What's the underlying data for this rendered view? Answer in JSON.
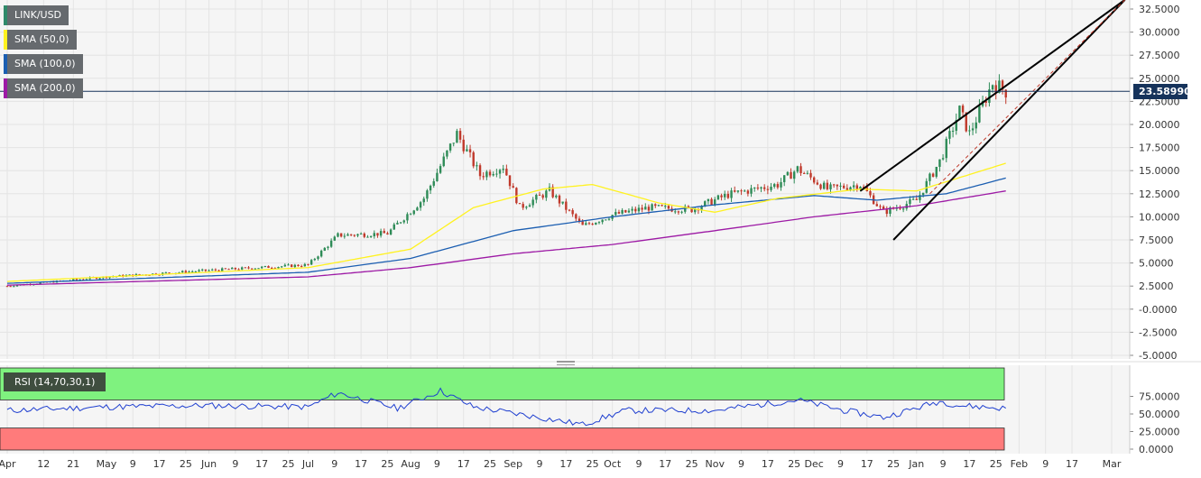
{
  "chart_data": {
    "type": "candlestick",
    "symbol": "LINK/USD",
    "indicators": [
      {
        "label": "SMA (50,0)",
        "color": "#fff21f"
      },
      {
        "label": "SMA (100,0)",
        "color": "#1b5eb1"
      },
      {
        "label": "SMA (200,0)",
        "color": "#9d1aa5"
      }
    ],
    "last_price": "23.58990",
    "y_ticks": [
      "32.5000",
      "30.0000",
      "27.5000",
      "25.0000",
      "22.5000",
      "20.0000",
      "17.5000",
      "15.0000",
      "12.5000",
      "10.0000",
      "7.5000",
      "5.0000",
      "2.5000",
      "-0.0000",
      "-2.5000",
      "-5.0000"
    ],
    "ylim": [
      -5,
      32.5
    ],
    "x_ticks": [
      "Apr",
      "12",
      "21",
      "May",
      "9",
      "17",
      "25",
      "Jun",
      "9",
      "17",
      "25",
      "Jul",
      "9",
      "17",
      "25",
      "Aug",
      "9",
      "17",
      "25",
      "Sep",
      "9",
      "17",
      "25",
      "Oct",
      "9",
      "17",
      "25",
      "Nov",
      "9",
      "17",
      "25",
      "Dec",
      "9",
      "17",
      "25",
      "Jan",
      "9",
      "17",
      "25",
      "Feb",
      "9",
      "17",
      "Mar"
    ],
    "price_anchors": [
      {
        "date": "2020-04-01",
        "close": 2.5
      },
      {
        "date": "2020-05-01",
        "close": 3.5
      },
      {
        "date": "2020-06-01",
        "close": 4.2
      },
      {
        "date": "2020-07-01",
        "close": 4.8
      },
      {
        "date": "2020-07-10",
        "close": 8.0
      },
      {
        "date": "2020-07-25",
        "close": 8.2
      },
      {
        "date": "2020-08-05",
        "close": 12.0
      },
      {
        "date": "2020-08-15",
        "close": 19.0
      },
      {
        "date": "2020-08-22",
        "close": 14.5
      },
      {
        "date": "2020-08-29",
        "close": 15.5
      },
      {
        "date": "2020-09-03",
        "close": 11.0
      },
      {
        "date": "2020-09-12",
        "close": 12.8
      },
      {
        "date": "2020-09-22",
        "close": 9.0
      },
      {
        "date": "2020-10-01",
        "close": 10.2
      },
      {
        "date": "2020-10-12",
        "close": 11.0
      },
      {
        "date": "2020-10-25",
        "close": 10.8
      },
      {
        "date": "2020-11-05",
        "close": 12.4
      },
      {
        "date": "2020-11-20",
        "close": 13.5
      },
      {
        "date": "2020-11-26",
        "close": 15.2
      },
      {
        "date": "2020-12-05",
        "close": 13.0
      },
      {
        "date": "2020-12-15",
        "close": 13.5
      },
      {
        "date": "2020-12-22",
        "close": 10.5
      },
      {
        "date": "2021-01-01",
        "close": 11.8
      },
      {
        "date": "2021-01-08",
        "close": 16.0
      },
      {
        "date": "2021-01-14",
        "close": 21.5
      },
      {
        "date": "2021-01-17",
        "close": 19.0
      },
      {
        "date": "2021-01-24",
        "close": 24.5
      },
      {
        "date": "2021-01-28",
        "close": 23.59
      }
    ],
    "sma50_anchors": [
      {
        "date": "2020-04-01",
        "close": 3.0
      },
      {
        "date": "2020-07-01",
        "close": 4.5
      },
      {
        "date": "2020-08-01",
        "close": 6.5
      },
      {
        "date": "2020-08-20",
        "close": 11.0
      },
      {
        "date": "2020-09-10",
        "close": 13.0
      },
      {
        "date": "2020-09-25",
        "close": 13.5
      },
      {
        "date": "2020-10-15",
        "close": 11.5
      },
      {
        "date": "2020-11-01",
        "close": 10.5
      },
      {
        "date": "2020-11-20",
        "close": 12.0
      },
      {
        "date": "2020-12-15",
        "close": 13.0
      },
      {
        "date": "2021-01-01",
        "close": 12.8
      },
      {
        "date": "2021-01-28",
        "close": 15.8
      }
    ],
    "sma100_anchors": [
      {
        "date": "2020-04-01",
        "close": 2.8
      },
      {
        "date": "2020-07-01",
        "close": 4.0
      },
      {
        "date": "2020-08-01",
        "close": 5.5
      },
      {
        "date": "2020-09-01",
        "close": 8.5
      },
      {
        "date": "2020-10-01",
        "close": 10.0
      },
      {
        "date": "2020-11-01",
        "close": 11.3
      },
      {
        "date": "2020-12-01",
        "close": 12.3
      },
      {
        "date": "2020-12-20",
        "close": 11.8
      },
      {
        "date": "2021-01-10",
        "close": 12.5
      },
      {
        "date": "2021-01-28",
        "close": 14.2
      }
    ],
    "sma200_anchors": [
      {
        "date": "2020-04-01",
        "close": 2.6
      },
      {
        "date": "2020-07-01",
        "close": 3.5
      },
      {
        "date": "2020-08-01",
        "close": 4.5
      },
      {
        "date": "2020-09-01",
        "close": 6.0
      },
      {
        "date": "2020-10-01",
        "close": 7.0
      },
      {
        "date": "2020-11-01",
        "close": 8.5
      },
      {
        "date": "2020-12-01",
        "close": 10.0
      },
      {
        "date": "2021-01-01",
        "close": 11.2
      },
      {
        "date": "2021-01-28",
        "close": 12.8
      }
    ],
    "channel": {
      "upper": [
        {
          "date": "2020-12-15",
          "close": 12.8
        },
        {
          "date": "2021-03-05",
          "close": 33.5
        }
      ],
      "lower": [
        {
          "date": "2020-12-25",
          "close": 7.5
        },
        {
          "date": "2021-03-05",
          "close": 33.5
        }
      ],
      "mid": [
        {
          "date": "2021-01-05",
          "close": 12.5
        },
        {
          "date": "2021-03-05",
          "close": 33.5
        }
      ]
    },
    "rsi": {
      "label": "RSI (14,70,30,1)",
      "overbought": 70,
      "oversold": 30,
      "y_ticks": [
        "75.0000",
        "50.0000",
        "25.0000",
        "0.0000"
      ],
      "ylim": [
        0,
        100
      ],
      "anchors": [
        {
          "date": "2020-04-01",
          "close": 55
        },
        {
          "date": "2020-05-01",
          "close": 60
        },
        {
          "date": "2020-06-01",
          "close": 62
        },
        {
          "date": "2020-07-01",
          "close": 60
        },
        {
          "date": "2020-07-10",
          "close": 80
        },
        {
          "date": "2020-07-28",
          "close": 58
        },
        {
          "date": "2020-08-10",
          "close": 83
        },
        {
          "date": "2020-08-20",
          "close": 60
        },
        {
          "date": "2020-09-05",
          "close": 48
        },
        {
          "date": "2020-09-22",
          "close": 35
        },
        {
          "date": "2020-10-05",
          "close": 55
        },
        {
          "date": "2020-11-01",
          "close": 55
        },
        {
          "date": "2020-11-26",
          "close": 70
        },
        {
          "date": "2020-12-10",
          "close": 55
        },
        {
          "date": "2020-12-22",
          "close": 45
        },
        {
          "date": "2021-01-08",
          "close": 68
        },
        {
          "date": "2021-01-14",
          "close": 62
        },
        {
          "date": "2021-01-28",
          "close": 58
        }
      ]
    }
  }
}
